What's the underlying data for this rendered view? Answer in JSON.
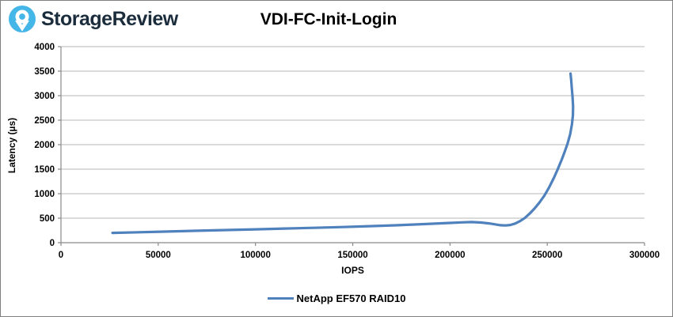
{
  "header": {
    "logo_text": "StorageReview"
  },
  "colors": {
    "series_blue": "#4f81bd",
    "gridline": "#b7b7b7",
    "axis": "#898989",
    "logo_circle": "#45b6e8",
    "logo_text": "#1b2d3c",
    "canvas_border": "#808080",
    "text": "#000000"
  },
  "chart_data": {
    "type": "line",
    "title": "VDI-FC-Init-Login",
    "xlabel": "IOPS",
    "ylabel": "Latency (µs)",
    "xlim": [
      0,
      300000
    ],
    "ylim": [
      0,
      4000
    ],
    "x_ticks": [
      0,
      50000,
      100000,
      150000,
      200000,
      250000,
      300000
    ],
    "y_ticks": [
      0,
      500,
      1000,
      1500,
      2000,
      2500,
      3000,
      3500,
      4000
    ],
    "grid": "horizontal",
    "legend_position": "bottom-center",
    "series": [
      {
        "name": "NetApp EF570 RAID10",
        "color": "#4f81bd",
        "points": [
          [
            26500,
            200
          ],
          [
            40000,
            213
          ],
          [
            55000,
            228
          ],
          [
            70000,
            243
          ],
          [
            85000,
            258
          ],
          [
            100000,
            273
          ],
          [
            115000,
            288
          ],
          [
            130000,
            303
          ],
          [
            145000,
            320
          ],
          [
            160000,
            338
          ],
          [
            172000,
            355
          ],
          [
            183000,
            372
          ],
          [
            192000,
            388
          ],
          [
            200000,
            403
          ],
          [
            206000,
            414
          ],
          [
            211000,
            421
          ],
          [
            216000,
            412
          ],
          [
            220000,
            393
          ],
          [
            223500,
            372
          ],
          [
            226000,
            356
          ],
          [
            228500,
            352
          ],
          [
            231000,
            362
          ],
          [
            233500,
            390
          ],
          [
            236000,
            440
          ],
          [
            238500,
            505
          ],
          [
            241000,
            595
          ],
          [
            243500,
            700
          ],
          [
            246000,
            820
          ],
          [
            248500,
            960
          ],
          [
            251000,
            1130
          ],
          [
            253500,
            1330
          ],
          [
            255500,
            1510
          ],
          [
            257500,
            1700
          ],
          [
            259000,
            1860
          ],
          [
            260500,
            2030
          ],
          [
            261800,
            2220
          ],
          [
            262700,
            2420
          ],
          [
            263200,
            2600
          ],
          [
            263300,
            2780
          ],
          [
            263000,
            2980
          ],
          [
            262600,
            3170
          ],
          [
            262300,
            3320
          ],
          [
            262000,
            3450
          ]
        ]
      }
    ]
  }
}
